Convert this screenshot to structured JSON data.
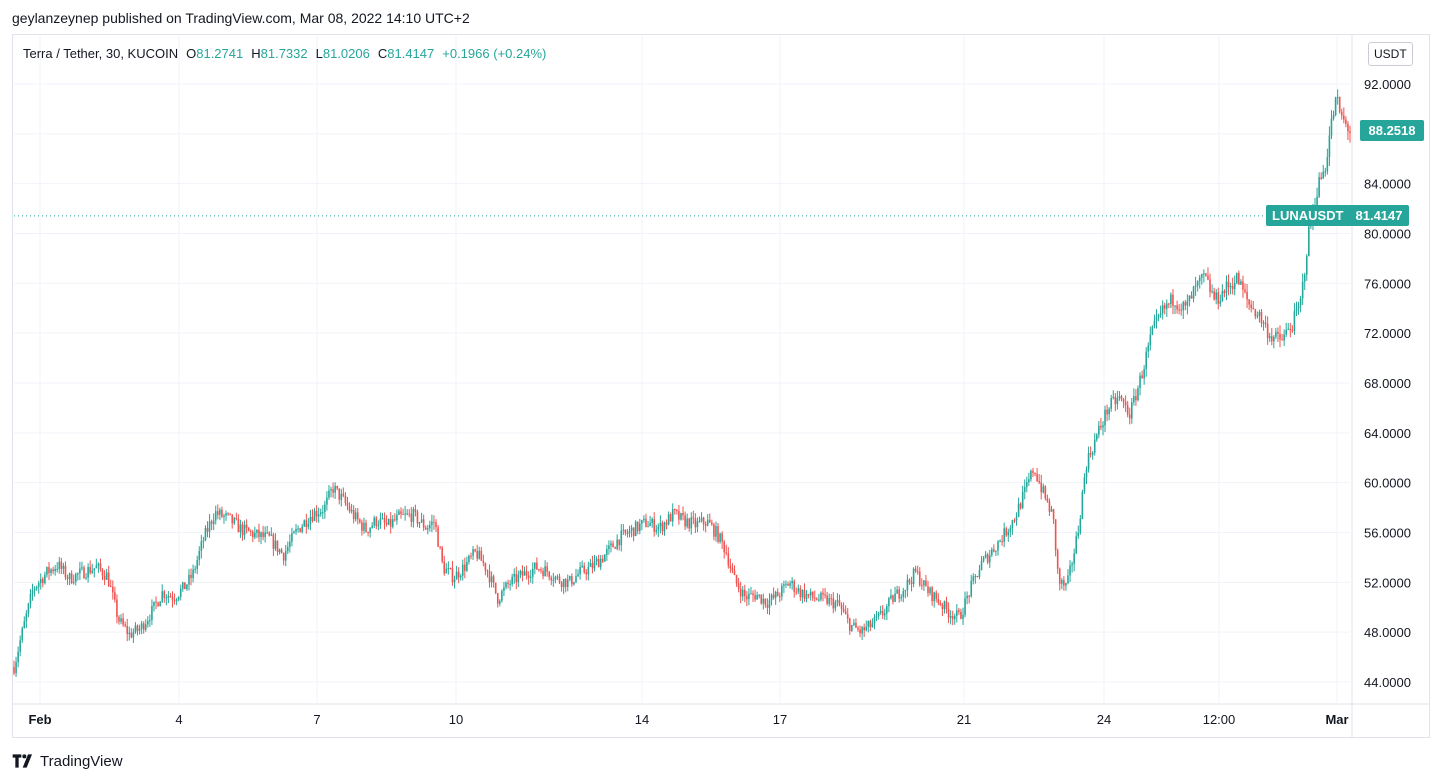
{
  "header": {
    "publisher": "geylanzeynep published on TradingView.com, Mar 08, 2022 14:10 UTC+2"
  },
  "legend": {
    "symbol": "Terra / Tether, 30, KUCOIN",
    "open_label": "O",
    "open": "81.2741",
    "high_label": "H",
    "high": "81.7332",
    "low_label": "L",
    "low": "81.0206",
    "close_label": "C",
    "close": "81.4147",
    "change": "+0.1966 (+0.24%)"
  },
  "currency": "USDT",
  "last_price": "88.2518",
  "symbol_tag": {
    "name": "LUNAUSDT",
    "price": "81.4147"
  },
  "brand": {
    "name": "TradingView",
    "icon": "tradingview-logo"
  },
  "colors": {
    "up": "#26a69a",
    "down": "#ef5350"
  },
  "chart_data": {
    "type": "candlestick",
    "symbol": "LUNAUSDT",
    "interval": "30",
    "y_ticks": [
      44,
      48,
      52,
      56,
      60,
      64,
      68,
      72,
      76,
      80,
      84,
      88,
      92
    ],
    "ylim": [
      42.0,
      96.0
    ],
    "x_ticks": [
      "Feb",
      "4",
      "7",
      "10",
      "14",
      "17",
      "21",
      "24",
      "12:00",
      "Mar"
    ],
    "grid": true,
    "price_lines": {
      "last": 88.2518,
      "symbol_price": 81.4147
    },
    "trend": [
      [
        0.0,
        45.2
      ],
      [
        0.3,
        48.0
      ],
      [
        0.7,
        51.5
      ],
      [
        1.2,
        52.8
      ],
      [
        1.6,
        53.4
      ],
      [
        2.0,
        52.3
      ],
      [
        2.6,
        52.9
      ],
      [
        3.0,
        53.2
      ],
      [
        3.4,
        52.5
      ],
      [
        3.8,
        49.0
      ],
      [
        4.2,
        47.8
      ],
      [
        4.6,
        48.3
      ],
      [
        5.0,
        49.6
      ],
      [
        5.4,
        51.2
      ],
      [
        5.8,
        50.8
      ],
      [
        6.2,
        51.6
      ],
      [
        6.5,
        52.6
      ],
      [
        6.9,
        55.5
      ],
      [
        7.3,
        57.6
      ],
      [
        7.8,
        57.1
      ],
      [
        8.3,
        56.2
      ],
      [
        8.8,
        55.8
      ],
      [
        9.3,
        55.5
      ],
      [
        9.8,
        54.2
      ],
      [
        10.3,
        56.2
      ],
      [
        10.8,
        57.4
      ],
      [
        11.3,
        58.0
      ],
      [
        11.6,
        59.6
      ],
      [
        12.0,
        58.5
      ],
      [
        12.4,
        57.2
      ],
      [
        12.8,
        56.2
      ],
      [
        13.2,
        57.0
      ],
      [
        13.6,
        56.5
      ],
      [
        14.0,
        57.2
      ],
      [
        14.5,
        57.4
      ],
      [
        15.0,
        56.4
      ],
      [
        15.3,
        56.9
      ],
      [
        15.6,
        53.2
      ],
      [
        16.0,
        52.4
      ],
      [
        16.4,
        53.3
      ],
      [
        16.8,
        54.4
      ],
      [
        17.2,
        53.1
      ],
      [
        17.6,
        50.7
      ],
      [
        18.0,
        51.9
      ],
      [
        18.5,
        52.6
      ],
      [
        19.0,
        53.2
      ],
      [
        19.4,
        52.9
      ],
      [
        19.8,
        52.2
      ],
      [
        20.2,
        52.0
      ],
      [
        20.6,
        52.8
      ],
      [
        21.0,
        53.2
      ],
      [
        21.5,
        54.2
      ],
      [
        22.0,
        55.5
      ],
      [
        22.5,
        56.2
      ],
      [
        23.0,
        56.8
      ],
      [
        23.5,
        56.4
      ],
      [
        24.0,
        57.5
      ],
      [
        24.3,
        57.0
      ],
      [
        24.8,
        56.6
      ],
      [
        25.2,
        56.9
      ],
      [
        25.6,
        55.8
      ],
      [
        25.9,
        54.5
      ],
      [
        26.2,
        52.2
      ],
      [
        26.6,
        50.8
      ],
      [
        27.0,
        51.0
      ],
      [
        27.4,
        50.4
      ],
      [
        27.8,
        51.0
      ],
      [
        28.2,
        52.0
      ],
      [
        28.6,
        51.2
      ],
      [
        29.0,
        50.8
      ],
      [
        29.5,
        50.6
      ],
      [
        30.0,
        50.2
      ],
      [
        30.4,
        48.6
      ],
      [
        30.8,
        48.0
      ],
      [
        31.2,
        48.6
      ],
      [
        31.6,
        49.5
      ],
      [
        32.0,
        50.8
      ],
      [
        32.4,
        51.6
      ],
      [
        32.8,
        52.8
      ],
      [
        33.2,
        51.4
      ],
      [
        33.6,
        50.6
      ],
      [
        34.0,
        49.6
      ],
      [
        34.4,
        49.2
      ],
      [
        34.8,
        51.5
      ],
      [
        35.2,
        53.5
      ],
      [
        35.6,
        54.6
      ],
      [
        36.0,
        55.8
      ],
      [
        36.4,
        57.2
      ],
      [
        36.8,
        59.4
      ],
      [
        37.1,
        61.2
      ],
      [
        37.4,
        59.4
      ],
      [
        37.8,
        57.2
      ],
      [
        38.0,
        52.0
      ],
      [
        38.3,
        51.6
      ],
      [
        38.7,
        56.0
      ],
      [
        39.0,
        61.5
      ],
      [
        39.4,
        63.8
      ],
      [
        39.8,
        66.0
      ],
      [
        40.2,
        66.8
      ],
      [
        40.6,
        65.5
      ],
      [
        41.0,
        68.5
      ],
      [
        41.4,
        72.0
      ],
      [
        41.8,
        73.8
      ],
      [
        42.2,
        74.8
      ],
      [
        42.6,
        73.9
      ],
      [
        43.0,
        75.6
      ],
      [
        43.3,
        76.5
      ],
      [
        43.7,
        74.6
      ],
      [
        44.1,
        75.6
      ],
      [
        44.5,
        76.4
      ],
      [
        44.9,
        74.4
      ],
      [
        45.3,
        73.4
      ],
      [
        45.7,
        71.8
      ],
      [
        46.1,
        71.4
      ],
      [
        46.5,
        72.7
      ],
      [
        46.8,
        74.4
      ],
      [
        47.1,
        80.0
      ],
      [
        47.4,
        83.6
      ],
      [
        47.7,
        85.4
      ],
      [
        47.9,
        88.6
      ],
      [
        48.1,
        90.8
      ],
      [
        48.3,
        89.2
      ],
      [
        48.6,
        88.25
      ]
    ]
  }
}
